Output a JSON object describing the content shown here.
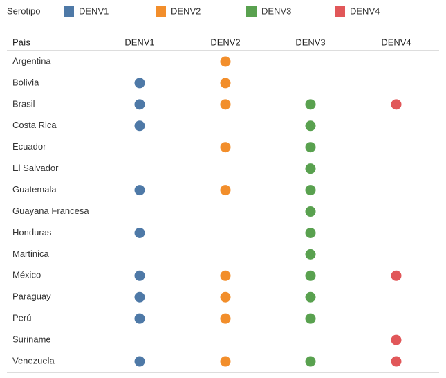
{
  "chart_data": {
    "type": "dot-matrix",
    "legend_title": "Serotipo",
    "row_header": "País",
    "categories": [
      "Argentina",
      "Bolivia",
      "Brasil",
      "Costa Rica",
      "Ecuador",
      "El Salvador",
      "Guatemala",
      "Guayana Francesa",
      "Honduras",
      "Martinica",
      "México",
      "Paraguay",
      "Perú",
      "Suriname",
      "Venezuela"
    ],
    "series": [
      {
        "name": "DENV1",
        "color": "#4e79a7",
        "present": [
          false,
          true,
          true,
          true,
          false,
          false,
          true,
          false,
          true,
          false,
          true,
          true,
          true,
          false,
          true
        ]
      },
      {
        "name": "DENV2",
        "color": "#f28e2b",
        "present": [
          true,
          true,
          true,
          false,
          true,
          false,
          true,
          false,
          false,
          false,
          true,
          true,
          true,
          false,
          true
        ]
      },
      {
        "name": "DENV3",
        "color": "#59a14f",
        "present": [
          false,
          false,
          true,
          true,
          true,
          true,
          true,
          true,
          true,
          true,
          true,
          true,
          true,
          false,
          true
        ]
      },
      {
        "name": "DENV4",
        "color": "#e15759",
        "present": [
          false,
          false,
          true,
          false,
          false,
          false,
          false,
          false,
          false,
          false,
          true,
          false,
          false,
          true,
          true
        ]
      }
    ]
  }
}
